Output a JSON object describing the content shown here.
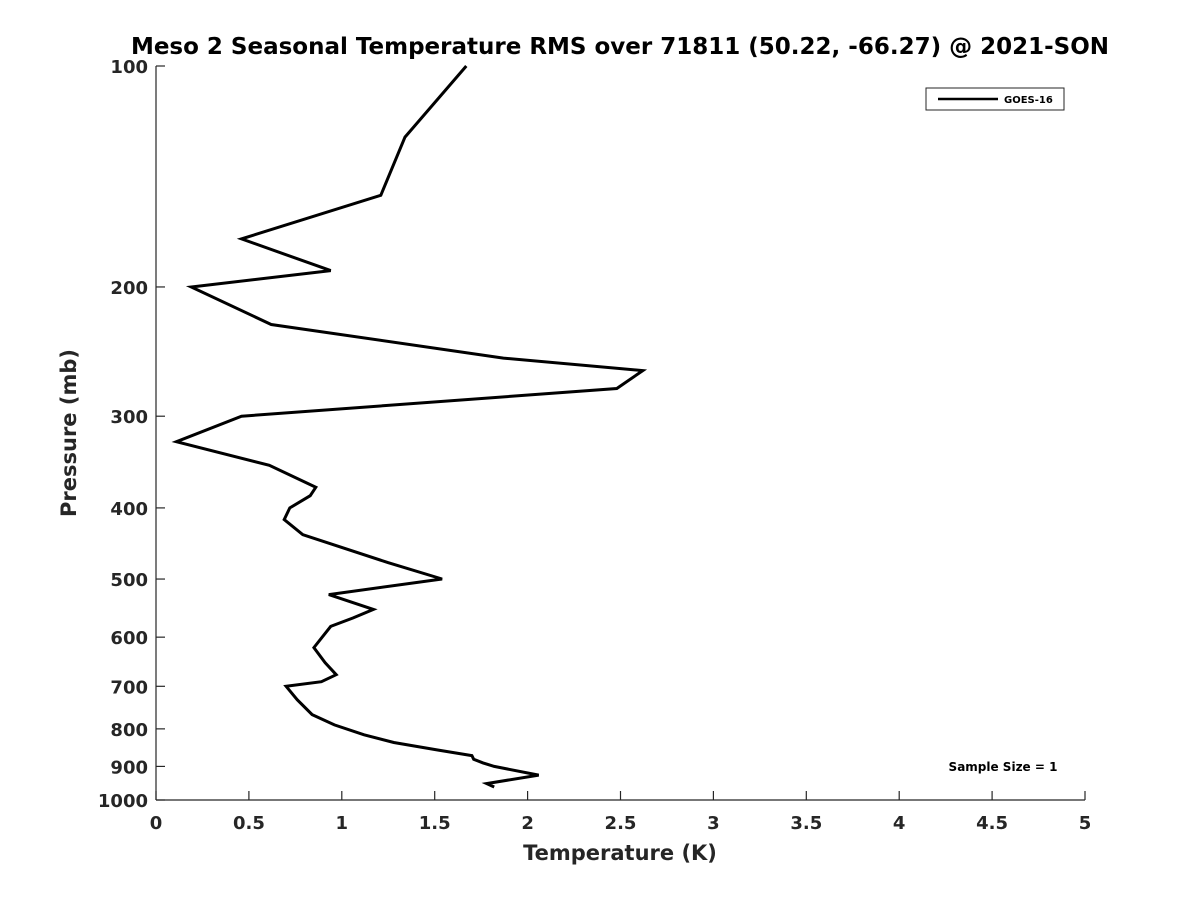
{
  "chart_data": {
    "type": "line",
    "title": "Meso 2 Seasonal Temperature RMS over 71811 (50.22, -66.27) @ 2021-SON",
    "xlabel": "Temperature (K)",
    "ylabel": "Pressure (mb)",
    "xlim": [
      0,
      5
    ],
    "ylim": [
      100,
      1000
    ],
    "y_scale": "log",
    "y_reversed": true,
    "x_ticks": [
      "0",
      "0.5",
      "1",
      "1.5",
      "2",
      "2.5",
      "3",
      "3.5",
      "4",
      "4.5",
      "5"
    ],
    "y_ticks": [
      "100",
      "200",
      "300",
      "400",
      "500",
      "600",
      "700",
      "800",
      "900",
      "1000"
    ],
    "grid": false,
    "legend_position": "top-right",
    "annotation": "Sample Size = 1",
    "series": [
      {
        "name": "GOES-16",
        "color": "#000000",
        "points": [
          [
            1.67,
            100
          ],
          [
            1.34,
            125
          ],
          [
            1.21,
            150
          ],
          [
            0.46,
            172
          ],
          [
            0.94,
            190
          ],
          [
            0.19,
            200
          ],
          [
            0.62,
            225
          ],
          [
            1.87,
            250
          ],
          [
            2.62,
            260
          ],
          [
            2.48,
            275
          ],
          [
            0.46,
            300
          ],
          [
            0.11,
            325
          ],
          [
            0.61,
            350
          ],
          [
            0.86,
            375
          ],
          [
            0.83,
            385
          ],
          [
            0.72,
            400
          ],
          [
            0.69,
            415
          ],
          [
            0.79,
            435
          ],
          [
            1.25,
            475
          ],
          [
            1.54,
            500
          ],
          [
            0.93,
            525
          ],
          [
            1.17,
            550
          ],
          [
            1.06,
            565
          ],
          [
            0.94,
            580
          ],
          [
            0.85,
            620
          ],
          [
            0.91,
            650
          ],
          [
            0.97,
            675
          ],
          [
            0.89,
            690
          ],
          [
            0.7,
            700
          ],
          [
            0.76,
            730
          ],
          [
            0.84,
            765
          ],
          [
            0.96,
            790
          ],
          [
            1.12,
            815
          ],
          [
            1.28,
            835
          ],
          [
            1.52,
            855
          ],
          [
            1.7,
            870
          ],
          [
            1.71,
            880
          ],
          [
            1.76,
            890
          ],
          [
            1.82,
            900
          ],
          [
            2.06,
            925
          ],
          [
            1.78,
            950
          ],
          [
            1.82,
            960
          ]
        ]
      }
    ]
  }
}
